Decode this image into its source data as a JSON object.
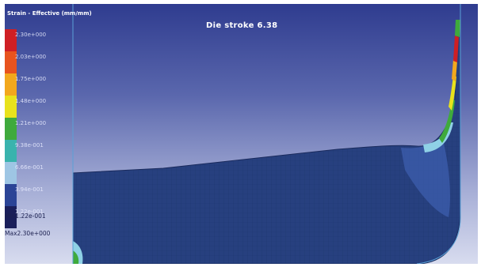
{
  "legend": {
    "title": "Strain - Effective (mm/mm)",
    "entries": [
      {
        "label": "2.30e+000",
        "color": "#cf1f24"
      },
      {
        "label": "2.03e+000",
        "color": "#e8531e"
      },
      {
        "label": "1.75e+000",
        "color": "#f2a81d"
      },
      {
        "label": "1.48e+000",
        "color": "#e8e21c"
      },
      {
        "label": "1.21e+000",
        "color": "#3faa3c"
      },
      {
        "label": "9.38e-001",
        "color": "#39b3ad"
      },
      {
        "label": "6.66e-001",
        "color": "#9ec6e4"
      },
      {
        "label": "3.94e-001",
        "color": "#2b4496"
      },
      {
        "label": "1.22e-001",
        "color": "#1a1f5a"
      }
    ]
  },
  "viewport": {
    "stroke_label": "Die stroke 6.38"
  },
  "min_label": "Min1.22e-001",
  "max_label": "Max2.30e+000",
  "colors": {
    "workpiece": "#27407f",
    "mesh_line": "#1f346c",
    "die_line": "#5aa0d6"
  }
}
